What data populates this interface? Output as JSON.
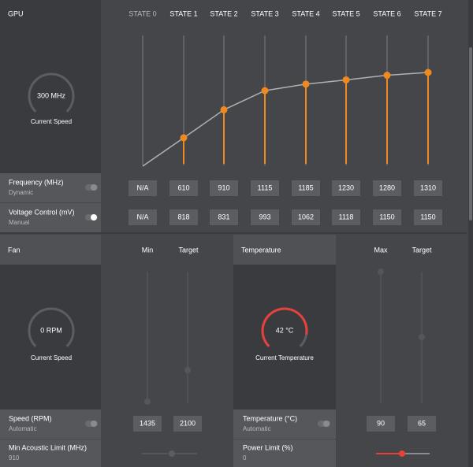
{
  "gpu": {
    "title": "GPU",
    "states": [
      "STATE 0",
      "STATE 1",
      "STATE 2",
      "STATE 3",
      "STATE 4",
      "STATE 5",
      "STATE 6",
      "STATE 7"
    ],
    "current_speed": {
      "value": "300 MHz",
      "label": "Current Speed"
    },
    "frequency": {
      "label": "Frequency (MHz)",
      "mode": "Dynamic",
      "values": [
        "N/A",
        610,
        910,
        1115,
        1185,
        1230,
        1280,
        1310
      ]
    },
    "voltage": {
      "label": "Voltage Control (mV)",
      "mode": "Manual",
      "values": [
        "N/A",
        818,
        831,
        993,
        1062,
        1118,
        1150,
        1150
      ]
    }
  },
  "fan": {
    "title": "Fan",
    "columns": [
      "Min",
      "Target"
    ],
    "current_speed": {
      "value": "0 RPM",
      "label": "Current Speed"
    },
    "speed": {
      "label": "Speed (RPM)",
      "mode": "Automatic",
      "values": [
        1435,
        2100
      ]
    },
    "acoustic": {
      "label": "Min Acoustic Limit (MHz)",
      "value": 910
    }
  },
  "temperature": {
    "title": "Temperature",
    "columns": [
      "Max",
      "Target"
    ],
    "current": {
      "value": "42 °C",
      "label": "Current Temperature"
    },
    "temp": {
      "label": "Temperature (°C)",
      "mode": "Automatic",
      "values": [
        90,
        65
      ]
    },
    "power": {
      "label": "Power Limit (%)",
      "value": 0
    }
  }
}
